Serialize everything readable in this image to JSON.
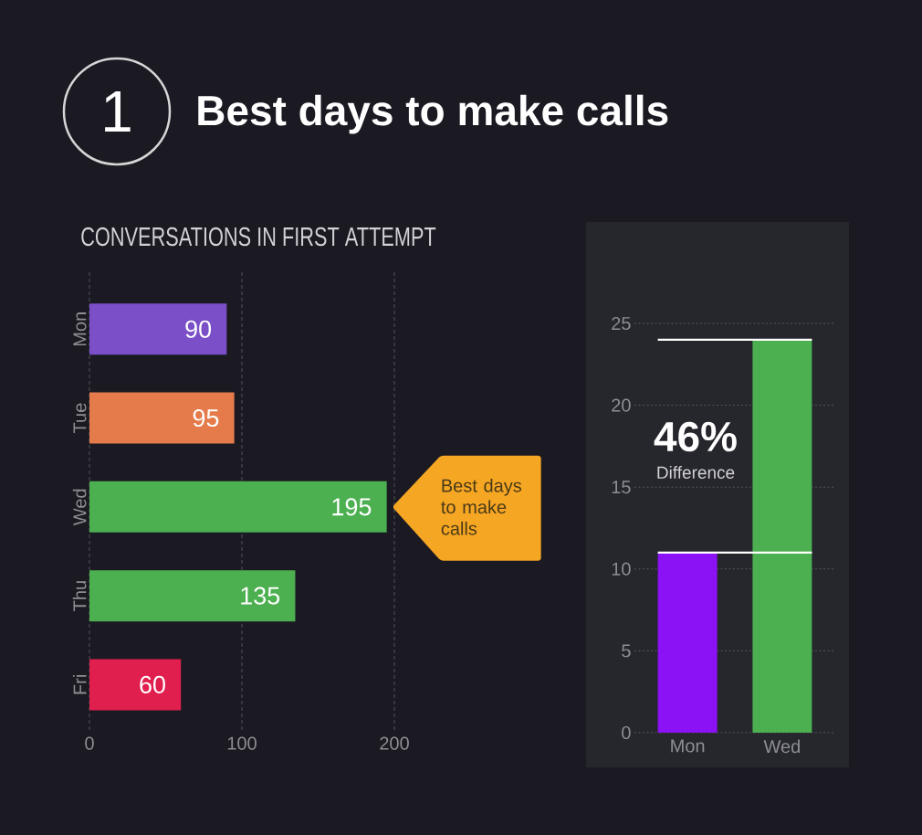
{
  "chart_data": [
    {
      "type": "bar",
      "orientation": "horizontal",
      "title": "Best days to make calls",
      "subtitle": "CONVERSATIONS IN FIRST ATTEMPT",
      "categories": [
        "Mon",
        "Tue",
        "Wed",
        "Thu",
        "Fri"
      ],
      "values": [
        90,
        95,
        195,
        135,
        60
      ],
      "colors": [
        "#7a4fc8",
        "#e57b4b",
        "#4caf50",
        "#4caf50",
        "#e01f4f"
      ],
      "xlim": [
        0,
        200
      ],
      "xticks": [
        0,
        100,
        200
      ],
      "grid": "x",
      "data_labels": true,
      "annotations": [
        "1",
        {
          "text": "Best days to make calls",
          "x": 195,
          "y": "Wed"
        }
      ]
    },
    {
      "type": "bar",
      "categories": [
        "Mon",
        "Wed"
      ],
      "values": [
        11,
        24
      ],
      "colors": [
        "#8b12f5",
        "#4caf50"
      ],
      "ylim": [
        0,
        25
      ],
      "yticks": [
        0,
        5,
        10,
        15,
        20,
        25
      ],
      "grid": "y",
      "ref_lines": [
        {
          "axis": "y",
          "value": 11,
          "color": "#ffffff"
        },
        {
          "axis": "y",
          "value": 24,
          "color": "#ffffff"
        }
      ],
      "annotations": [
        "46%",
        "Difference"
      ]
    }
  ]
}
